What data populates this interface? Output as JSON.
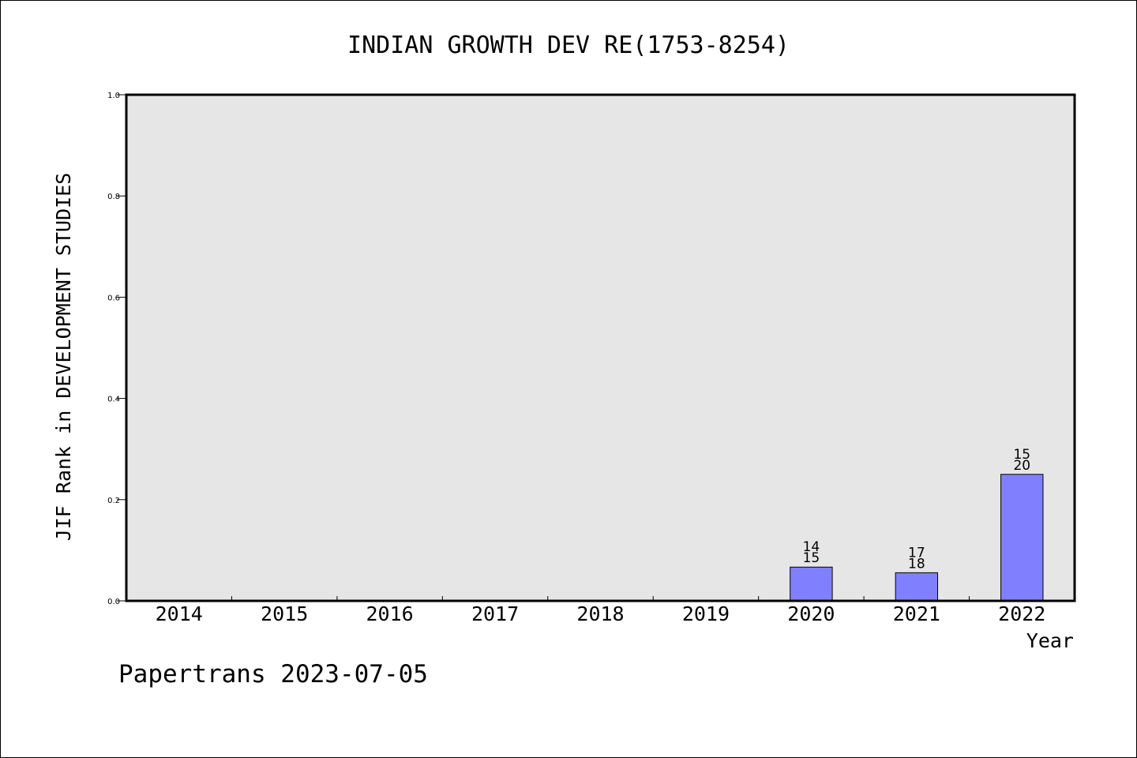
{
  "chart_data": {
    "type": "bar",
    "title": "INDIAN GROWTH DEV RE(1753-8254)",
    "xlabel": "Year",
    "ylabel": "JIF Rank in DEVELOPMENT STUDIES",
    "ylim": [
      0,
      1.0
    ],
    "yticks": [
      "0.0",
      "0.2",
      "0.4",
      "0.6",
      "0.8",
      "1.0"
    ],
    "categories": [
      "2014",
      "2015",
      "2016",
      "2017",
      "2018",
      "2019",
      "2020",
      "2021",
      "2022"
    ],
    "values": [
      null,
      null,
      null,
      null,
      null,
      null,
      0.0667,
      0.0556,
      0.25
    ],
    "bar_labels": [
      null,
      null,
      null,
      null,
      null,
      null,
      {
        "rank": "14",
        "total": "15"
      },
      {
        "rank": "17",
        "total": "18"
      },
      {
        "rank": "15",
        "total": "20"
      }
    ],
    "grid": false,
    "bar_color": "#8080ff",
    "plot_background": "#e6e6e6"
  },
  "footer": "Papertrans 2023-07-05"
}
